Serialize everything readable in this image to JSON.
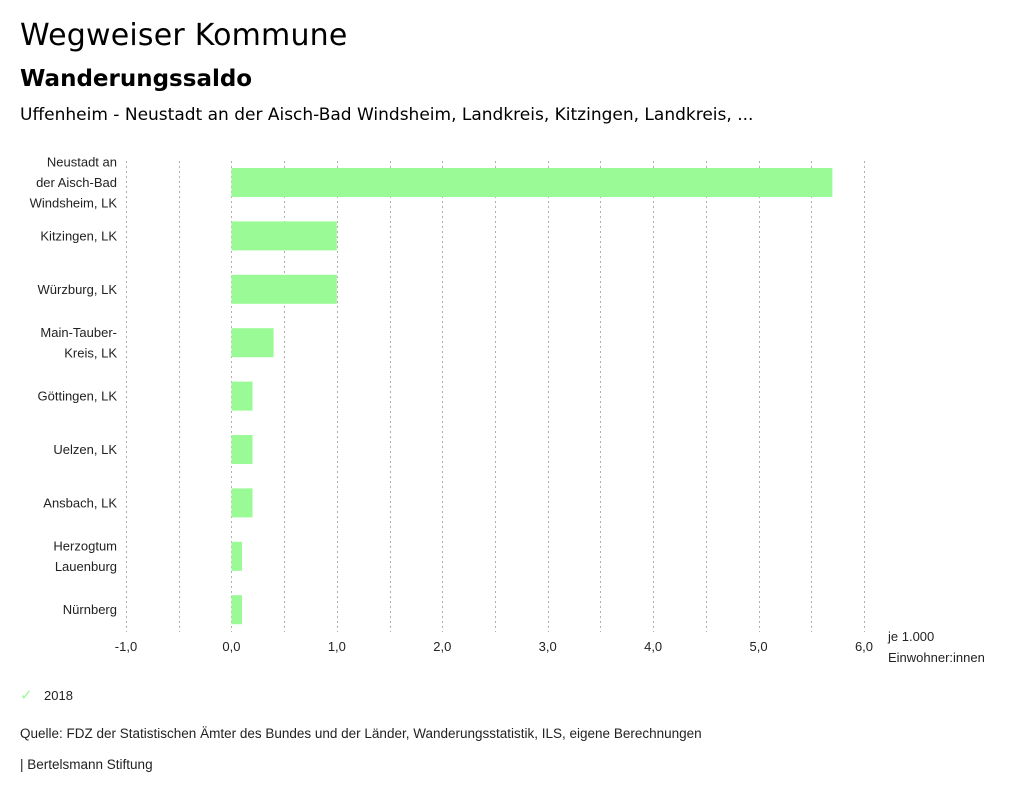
{
  "header": {
    "title": "Wegweiser Kommune",
    "subtitle": "Wanderungssaldo",
    "region": "Uffenheim - Neustadt an der Aisch-Bad Windsheim, Landkreis, Kitzingen, Landkreis, ..."
  },
  "chart_data": {
    "type": "bar",
    "orientation": "horizontal",
    "title": "Wanderungssaldo",
    "categories": [
      [
        "Neustadt an",
        "der Aisch-Bad",
        "Windsheim, LK"
      ],
      [
        "Kitzingen, LK"
      ],
      [
        "Würzburg, LK"
      ],
      [
        "Main-Tauber-",
        "Kreis, LK"
      ],
      [
        "Göttingen, LK"
      ],
      [
        "Uelzen, LK"
      ],
      [
        "Ansbach, LK"
      ],
      [
        "Herzogtum",
        "Lauenburg"
      ],
      [
        "Nürnberg"
      ]
    ],
    "series": [
      {
        "name": "2018",
        "color": "#9afa96",
        "values": [
          5.7,
          1.0,
          1.0,
          0.4,
          0.2,
          0.2,
          0.2,
          0.1,
          0.1
        ]
      }
    ],
    "xlim": [
      -1.0,
      6.0
    ],
    "xticks": [
      -1.0,
      0.0,
      1.0,
      2.0,
      3.0,
      4.0,
      5.0,
      6.0
    ],
    "xtick_labels": [
      "-1,0",
      "0,0",
      "1,0",
      "2,0",
      "3,0",
      "4,0",
      "5,0",
      "6,0"
    ],
    "minor_grid_step": 0.5,
    "xlabel": [
      "je 1.000",
      "Einwohner:innen"
    ],
    "ylabel": "",
    "grid": true,
    "grid_color": "#b0b0b0",
    "legend_position": "bottom-left"
  },
  "legend": {
    "items": [
      {
        "label": "2018",
        "color": "#9afa96",
        "icon": "check-icon"
      }
    ]
  },
  "footer": {
    "source": "Quelle: FDZ der Statistischen Ämter des Bundes und der Länder, Wanderungsstatistik, ILS, eigene Berechnungen",
    "credit": "| Bertelsmann Stiftung"
  }
}
